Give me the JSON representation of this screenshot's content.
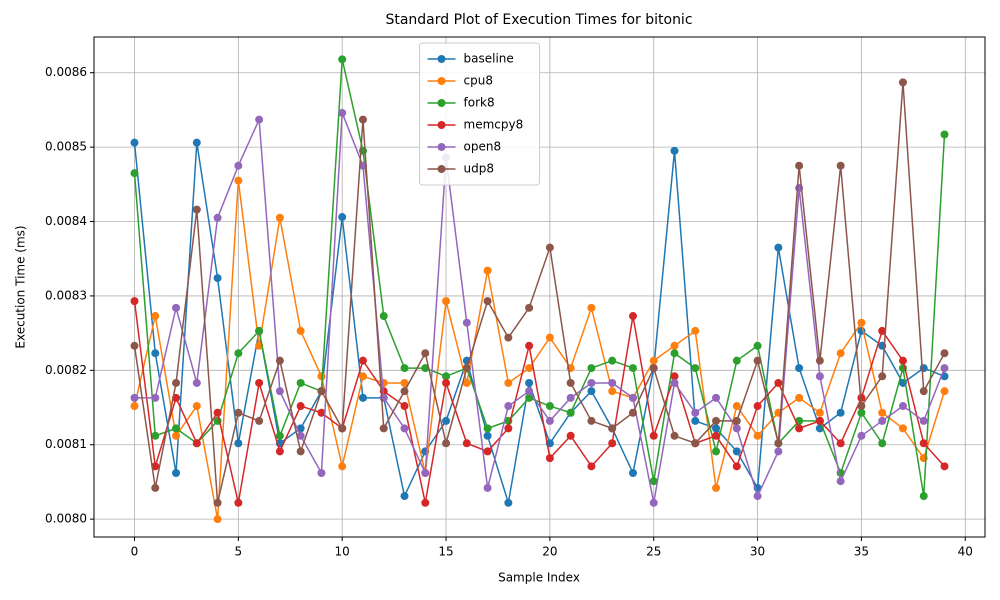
{
  "chart_data": {
    "type": "line",
    "title": "Standard Plot of Execution Times for bitonic",
    "x_label": "Sample Index",
    "y_label": "Execution Time (ms)",
    "x": [
      0,
      1,
      2,
      3,
      4,
      5,
      6,
      7,
      8,
      9,
      10,
      11,
      12,
      13,
      14,
      15,
      16,
      17,
      18,
      19,
      20,
      21,
      22,
      23,
      24,
      25,
      26,
      27,
      28,
      29,
      30,
      31,
      32,
      33,
      34,
      35,
      36,
      37,
      38,
      39
    ],
    "xlim": [
      -1.95,
      40.95
    ],
    "xticks": [
      0,
      5,
      10,
      15,
      20,
      25,
      30,
      35,
      40
    ],
    "ylim": [
      0.007976,
      0.008648
    ],
    "yticks": [
      {
        "value": 0.008,
        "label": "0.0080"
      },
      0.0081,
      0.0082,
      0.0083,
      0.0084,
      0.0085,
      0.0086
    ],
    "grid": true,
    "legend": "upper center",
    "series": [
      {
        "name": "baseline",
        "color": "#1f77b4",
        "values": [
          0.008506,
          0.008223,
          0.008062,
          0.008506,
          0.008324,
          0.008102,
          0.008253,
          0.008102,
          0.008122,
          0.008172,
          0.008406,
          0.008163,
          0.008163,
          0.008031,
          0.008091,
          0.008132,
          0.008213,
          0.008112,
          0.008022,
          0.008183,
          0.008102,
          0.008143,
          0.008172,
          0.008122,
          0.008062,
          0.008203,
          0.008495,
          0.008132,
          0.008122,
          0.008091,
          0.008042,
          0.008365,
          0.008203,
          0.008122,
          0.008143,
          0.008253,
          0.008233,
          0.008183,
          0.008203,
          0.008192
        ]
      },
      {
        "name": "cpu8",
        "color": "#ff7f0e",
        "values": [
          0.008152,
          0.008273,
          0.008112,
          0.008152,
          0.008,
          0.008455,
          0.008233,
          0.008405,
          0.008253,
          0.008192,
          0.008071,
          0.008192,
          0.008183,
          0.008183,
          0.008062,
          0.008293,
          0.008183,
          0.008334,
          0.008183,
          0.008203,
          0.008244,
          0.008203,
          0.008284,
          0.008172,
          0.008163,
          0.008213,
          0.008233,
          0.008253,
          0.008042,
          0.008152,
          0.008112,
          0.008143,
          0.008163,
          0.008143,
          0.008223,
          0.008264,
          0.008143,
          0.008122,
          0.008082,
          0.008172
        ]
      },
      {
        "name": "fork8",
        "color": "#2ca02c",
        "values": [
          0.008465,
          0.008112,
          0.008122,
          0.008102,
          0.008132,
          0.008223,
          0.008253,
          0.008112,
          0.008183,
          0.008172,
          0.008618,
          0.008495,
          0.008273,
          0.008203,
          0.008203,
          0.008192,
          0.008203,
          0.008122,
          0.008132,
          0.008163,
          0.008152,
          0.008143,
          0.008203,
          0.008213,
          0.008203,
          0.008051,
          0.008223,
          0.008203,
          0.008091,
          0.008213,
          0.008233,
          0.008102,
          0.008132,
          0.008132,
          0.008062,
          0.008143,
          0.008102,
          0.008203,
          0.008031,
          0.008517
        ]
      },
      {
        "name": "memcpy8",
        "color": "#d62728",
        "values": [
          0.008293,
          0.008071,
          0.008163,
          0.008102,
          0.008143,
          0.008022,
          0.008183,
          0.008091,
          0.008152,
          0.008143,
          0.008122,
          0.008213,
          0.008172,
          0.008152,
          0.008022,
          0.008183,
          0.008102,
          0.008091,
          0.008122,
          0.008233,
          0.008082,
          0.008112,
          0.008071,
          0.008102,
          0.008273,
          0.008112,
          0.008192,
          0.008102,
          0.008112,
          0.008071,
          0.008152,
          0.008183,
          0.008122,
          0.008132,
          0.008102,
          0.008163,
          0.008253,
          0.008213,
          0.008102,
          0.008071
        ]
      },
      {
        "name": "open8",
        "color": "#9467bd",
        "values": [
          0.008163,
          0.008163,
          0.008284,
          0.008183,
          0.008405,
          0.008475,
          0.008537,
          0.008172,
          0.008112,
          0.008062,
          0.008546,
          0.008475,
          0.008163,
          0.008122,
          0.008062,
          0.008486,
          0.008264,
          0.008042,
          0.008152,
          0.008172,
          0.008132,
          0.008163,
          0.008183,
          0.008183,
          0.008163,
          0.008022,
          0.008183,
          0.008143,
          0.008163,
          0.008122,
          0.008031,
          0.008091,
          0.008445,
          0.008192,
          0.008051,
          0.008112,
          0.008132,
          0.008152,
          0.008132,
          0.008203
        ]
      },
      {
        "name": "udp8",
        "color": "#8c564b",
        "values": [
          0.008233,
          0.008042,
          0.008183,
          0.008416,
          0.008022,
          0.008143,
          0.008132,
          0.008213,
          0.008091,
          0.008172,
          0.008122,
          0.008537,
          0.008122,
          0.008172,
          0.008223,
          0.008102,
          0.008203,
          0.008293,
          0.008244,
          0.008284,
          0.008365,
          0.008183,
          0.008132,
          0.008122,
          0.008143,
          0.008203,
          0.008112,
          0.008102,
          0.008132,
          0.008132,
          0.008213,
          0.008102,
          0.008475,
          0.008213,
          0.008475,
          0.008152,
          0.008192,
          0.008587,
          0.008172,
          0.008223
        ]
      }
    ]
  }
}
